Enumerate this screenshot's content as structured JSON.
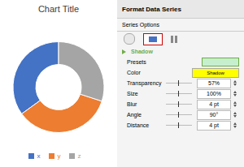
{
  "chart_data": {
    "type": "doughnut",
    "title": "Chart Title",
    "categories": [
      "x",
      "y",
      "z"
    ],
    "values": [
      0.35,
      0.35,
      0.3
    ],
    "colors": [
      "#4472C4",
      "#ED7D31",
      "#A5A5A5"
    ],
    "legend": "bottom",
    "annotations": [
      "Format Data Series",
      "Series Options",
      "Shadow",
      "Presets",
      "Shadow",
      "Color",
      "Transparency",
      "57%",
      "Size",
      "100%",
      "Blur",
      "4 pt",
      "Angle",
      "90°",
      "Distance",
      "4 pt"
    ]
  }
}
